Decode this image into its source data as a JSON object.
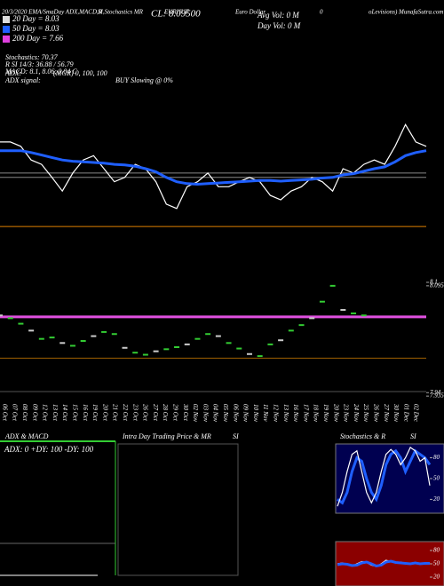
{
  "header": {
    "info": "20/3/2020  EMA/SmaDay ADX,MACD,R",
    "info2": "SI,Stochastics MR",
    "symbol": "EURHUF",
    "name": "Euro Dollar",
    "zero": "0",
    "site": "oLevisions) MunafaSutra.com",
    "cl": "CL: 8.09500",
    "avg_vol": "Avg Vol: 0  M",
    "day_vol": "Day Vol: 0  M"
  },
  "legend": [
    {
      "label": "20 Day = 8.03",
      "color": "#dddddd"
    },
    {
      "label": "50 Day = 8.03",
      "color": "#1f5fff"
    },
    {
      "label": "200 Day = 7.66",
      "color": "#e040e0"
    }
  ],
  "indicators": [
    "Stochastics: 70.37",
    "R      SI 14/3: 36.88 / 56.79",
    "MACD: 8.1, 8.06, 0.04  C"
  ],
  "adx": [
    "ADX:",
    "(MGR) 0,  100,  100",
    "ADX  signal:",
    "BUY Slowing @ 0%"
  ],
  "panels": {
    "adx_title": "ADX  & MACD",
    "adx_values": "ADX: 0  +DY: 100  -DY: 100",
    "intraday_title": "Intra  Day Trading Price  & MR",
    "intraday_si": "SI",
    "stoch_title": "Stochastics & R",
    "stoch_si": "SI"
  },
  "chart_data": [
    {
      "type": "line",
      "categories": [
        "06 Oct",
        "07 Oct",
        "08 Oct",
        "09 Oct",
        "12 Oct",
        "13 Oct",
        "14 Oct",
        "15 Oct",
        "16 Oct",
        "19 Oct",
        "20 Oct",
        "21 Oct",
        "22 Oct",
        "23 Oct",
        "26 Oct",
        "27 Oct",
        "28 Oct",
        "29 Oct",
        "30 Oct",
        "02 Nov",
        "03 Nov",
        "04 Nov",
        "05 Nov",
        "06 Nov",
        "09 Nov",
        "10 Nov",
        "11 Nov",
        "12 Nov",
        "13 Nov",
        "16 Nov",
        "17 Nov",
        "18 Nov",
        "19 Nov",
        "20 Nov",
        "23 Nov",
        "24 Nov",
        "25 Nov",
        "26 Nov",
        "27 Nov",
        "30 Nov",
        "01 Dec",
        "02 Dec"
      ],
      "ylim": [
        7.96,
        8.16
      ],
      "series": [
        {
          "color": "#ffffff",
          "values": [
            8.103,
            8.103,
            8.096,
            8.074,
            8.067,
            8.046,
            8.024,
            8.053,
            8.074,
            8.081,
            8.06,
            8.039,
            8.046,
            8.067,
            8.06,
            8.039,
            8.003,
            7.996,
            8.031,
            8.039,
            8.053,
            8.031,
            8.031,
            8.039,
            8.046,
            8.039,
            8.017,
            8.01,
            8.024,
            8.031,
            8.046,
            8.039,
            8.024,
            8.06,
            8.053,
            8.067,
            8.074,
            8.067,
            8.096,
            8.131,
            8.103,
            8.096
          ]
        },
        {
          "color": "#1f5fff",
          "values": [
            8.089,
            8.089,
            8.089,
            8.086,
            8.082,
            8.078,
            8.074,
            8.072,
            8.071,
            8.07,
            8.069,
            8.067,
            8.066,
            8.064,
            8.06,
            8.055,
            8.046,
            8.039,
            8.036,
            8.035,
            8.036,
            8.037,
            8.038,
            8.039,
            8.04,
            8.041,
            8.041,
            8.04,
            8.041,
            8.042,
            8.043,
            8.045,
            8.046,
            8.05,
            8.052,
            8.056,
            8.06,
            8.063,
            8.071,
            8.081,
            8.086,
            8.089
          ]
        }
      ],
      "hlines": [
        {
          "value": 7.967,
          "color": "#e08000"
        },
        {
          "value": 8.053,
          "color": "#888888"
        },
        {
          "value": 8.046,
          "color": "#888888"
        }
      ]
    },
    {
      "type": "scatter",
      "ylim": [
        7.93,
        8.1
      ],
      "yticks": [
        8.1,
        {
          "value": 8.095,
          "label": "8.09500"
        },
        7.94,
        {
          "value": 7.935,
          "label": "7.93500"
        }
      ],
      "series": [
        {
          "color": "#cccccc",
          "values": [
            8.052,
            8.048,
            8.04,
            8.03,
            8.018,
            8.02,
            8.012,
            8.008,
            8.015,
            8.022,
            8.028,
            8.025,
            8.005,
            7.998,
            7.995,
            8.0,
            8.003,
            8.006,
            8.01,
            8.018,
            8.025,
            8.022,
            8.012,
            8.004,
            7.996,
            7.993,
            8.01,
            8.016,
            8.03,
            8.038,
            8.048,
            8.072,
            8.095,
            8.06,
            8.055,
            8.052,
            null,
            null,
            null,
            null,
            null,
            null
          ]
        }
      ],
      "hlines": [
        {
          "value": 8.05,
          "color": "#e050e0"
        },
        {
          "value": 7.99,
          "color": "#a06000"
        }
      ]
    },
    {
      "type": "line",
      "ylim": [
        0,
        100
      ],
      "yticks": [
        80,
        50,
        20
      ],
      "series": [
        {
          "color": "#1f5fff",
          "values": [
            20,
            15,
            30,
            60,
            80,
            75,
            50,
            30,
            20,
            40,
            70,
            85,
            90,
            80,
            60,
            75,
            90,
            85,
            80,
            70
          ]
        },
        {
          "color": "#ffffff",
          "values": [
            10,
            30,
            60,
            85,
            90,
            60,
            30,
            15,
            30,
            60,
            85,
            92,
            85,
            70,
            80,
            95,
            90,
            75,
            80,
            40
          ]
        }
      ]
    },
    {
      "type": "line",
      "ylim": [
        0,
        100
      ],
      "yticks": [
        80,
        50,
        20
      ],
      "series": [
        {
          "color": "#ffffff",
          "values": [
            50,
            52,
            48,
            45,
            50,
            55,
            53,
            47,
            44,
            50,
            58,
            55,
            52,
            54,
            50,
            51,
            53,
            49,
            52,
            50
          ]
        },
        {
          "color": "#1f5fff",
          "values": [
            48,
            50,
            49,
            46,
            47,
            52,
            54,
            50,
            45,
            47,
            54,
            56,
            53,
            52,
            51,
            50,
            52,
            50,
            51,
            51
          ]
        }
      ]
    }
  ]
}
